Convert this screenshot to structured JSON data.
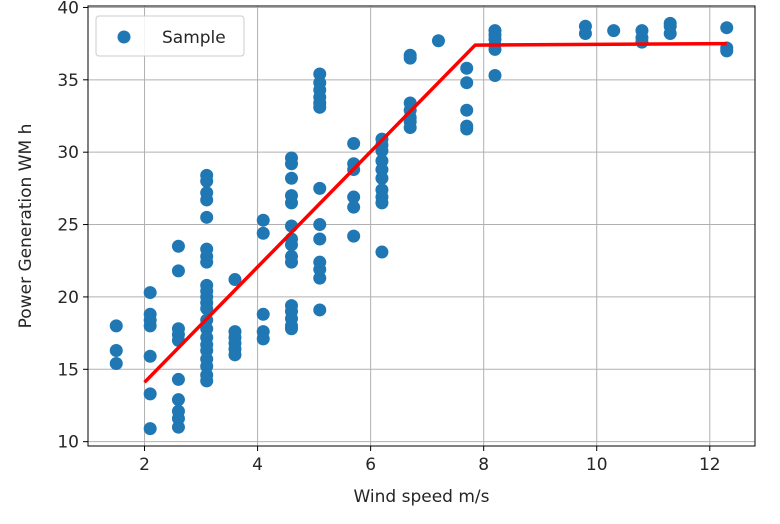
{
  "chart_data": {
    "type": "scatter",
    "xlabel": "Wind speed m/s",
    "ylabel": "Power Generation WM h",
    "xlim": [
      1.0,
      12.8
    ],
    "ylim": [
      9.7,
      40.1
    ],
    "xticks": [
      2,
      4,
      6,
      8,
      10,
      12
    ],
    "yticks": [
      10,
      15,
      20,
      25,
      30,
      35,
      40
    ],
    "grid": true,
    "legend": {
      "placement": "top-left",
      "entries": [
        "Sample"
      ]
    },
    "colors": {
      "scatter": "#1f77b4",
      "fit_line": "#ff0000",
      "grid": "#b0b0b0"
    },
    "series": [
      {
        "name": "Sample",
        "kind": "scatter",
        "points": [
          [
            1.5,
            18.0
          ],
          [
            1.5,
            16.3
          ],
          [
            1.5,
            15.4
          ],
          [
            2.1,
            20.3
          ],
          [
            2.1,
            18.8
          ],
          [
            2.1,
            18.4
          ],
          [
            2.1,
            18.0
          ],
          [
            2.1,
            15.9
          ],
          [
            2.1,
            13.3
          ],
          [
            2.1,
            10.9
          ],
          [
            2.6,
            23.5
          ],
          [
            2.6,
            21.8
          ],
          [
            2.6,
            17.8
          ],
          [
            2.6,
            17.4
          ],
          [
            2.6,
            17.0
          ],
          [
            2.6,
            14.3
          ],
          [
            2.6,
            12.9
          ],
          [
            2.6,
            12.1
          ],
          [
            2.6,
            11.6
          ],
          [
            2.6,
            11.0
          ],
          [
            3.1,
            28.4
          ],
          [
            3.1,
            28.0
          ],
          [
            3.1,
            27.2
          ],
          [
            3.1,
            26.7
          ],
          [
            3.1,
            25.5
          ],
          [
            3.1,
            23.3
          ],
          [
            3.1,
            22.8
          ],
          [
            3.1,
            22.4
          ],
          [
            3.1,
            20.8
          ],
          [
            3.1,
            20.4
          ],
          [
            3.1,
            20.0
          ],
          [
            3.1,
            19.6
          ],
          [
            3.1,
            19.2
          ],
          [
            3.1,
            18.4
          ],
          [
            3.1,
            17.8
          ],
          [
            3.1,
            17.2
          ],
          [
            3.1,
            16.7
          ],
          [
            3.1,
            16.3
          ],
          [
            3.1,
            15.7
          ],
          [
            3.1,
            15.2
          ],
          [
            3.1,
            14.6
          ],
          [
            3.1,
            14.2
          ],
          [
            3.6,
            21.2
          ],
          [
            3.6,
            17.6
          ],
          [
            3.6,
            17.2
          ],
          [
            3.6,
            16.8
          ],
          [
            3.6,
            16.4
          ],
          [
            3.6,
            16.0
          ],
          [
            4.1,
            25.3
          ],
          [
            4.1,
            24.4
          ],
          [
            4.1,
            18.8
          ],
          [
            4.1,
            17.6
          ],
          [
            4.1,
            17.1
          ],
          [
            4.6,
            29.6
          ],
          [
            4.6,
            29.2
          ],
          [
            4.6,
            28.2
          ],
          [
            4.6,
            27.0
          ],
          [
            4.6,
            26.5
          ],
          [
            4.6,
            24.9
          ],
          [
            4.6,
            24.0
          ],
          [
            4.6,
            23.6
          ],
          [
            4.6,
            22.8
          ],
          [
            4.6,
            22.4
          ],
          [
            4.6,
            19.4
          ],
          [
            4.6,
            19.0
          ],
          [
            4.6,
            18.5
          ],
          [
            4.6,
            18.0
          ],
          [
            4.6,
            17.8
          ],
          [
            5.1,
            35.4
          ],
          [
            5.1,
            34.8
          ],
          [
            5.1,
            34.3
          ],
          [
            5.1,
            33.8
          ],
          [
            5.1,
            33.4
          ],
          [
            5.1,
            33.1
          ],
          [
            5.1,
            27.5
          ],
          [
            5.1,
            25.0
          ],
          [
            5.1,
            24.0
          ],
          [
            5.1,
            22.4
          ],
          [
            5.1,
            21.9
          ],
          [
            5.1,
            21.3
          ],
          [
            5.1,
            19.1
          ],
          [
            5.7,
            30.6
          ],
          [
            5.7,
            29.2
          ],
          [
            5.7,
            28.8
          ],
          [
            5.7,
            26.9
          ],
          [
            5.7,
            26.2
          ],
          [
            5.7,
            24.2
          ],
          [
            6.2,
            30.9
          ],
          [
            6.2,
            30.5
          ],
          [
            6.2,
            30.1
          ],
          [
            6.2,
            29.4
          ],
          [
            6.2,
            28.8
          ],
          [
            6.2,
            28.2
          ],
          [
            6.2,
            27.4
          ],
          [
            6.2,
            26.9
          ],
          [
            6.2,
            26.5
          ],
          [
            6.2,
            23.1
          ],
          [
            6.7,
            36.7
          ],
          [
            6.7,
            36.5
          ],
          [
            6.7,
            33.4
          ],
          [
            6.7,
            32.9
          ],
          [
            6.7,
            32.4
          ],
          [
            6.7,
            32.1
          ],
          [
            6.7,
            31.7
          ],
          [
            7.2,
            37.7
          ],
          [
            7.7,
            35.8
          ],
          [
            7.7,
            34.8
          ],
          [
            7.7,
            32.9
          ],
          [
            7.7,
            31.8
          ],
          [
            7.7,
            31.6
          ],
          [
            8.2,
            38.4
          ],
          [
            8.2,
            38.1
          ],
          [
            8.2,
            37.8
          ],
          [
            8.2,
            37.4
          ],
          [
            8.2,
            37.1
          ],
          [
            8.2,
            35.3
          ],
          [
            9.8,
            38.7
          ],
          [
            9.8,
            38.2
          ],
          [
            10.3,
            38.4
          ],
          [
            10.8,
            38.4
          ],
          [
            10.8,
            37.9
          ],
          [
            10.8,
            37.6
          ],
          [
            11.3,
            38.9
          ],
          [
            11.3,
            38.7
          ],
          [
            11.3,
            38.2
          ],
          [
            12.3,
            38.6
          ],
          [
            12.3,
            37.2
          ],
          [
            12.3,
            37.0
          ]
        ]
      },
      {
        "name": "",
        "kind": "line",
        "points": [
          [
            2.0,
            14.1
          ],
          [
            7.85,
            37.4
          ],
          [
            12.3,
            37.5
          ]
        ]
      }
    ]
  }
}
